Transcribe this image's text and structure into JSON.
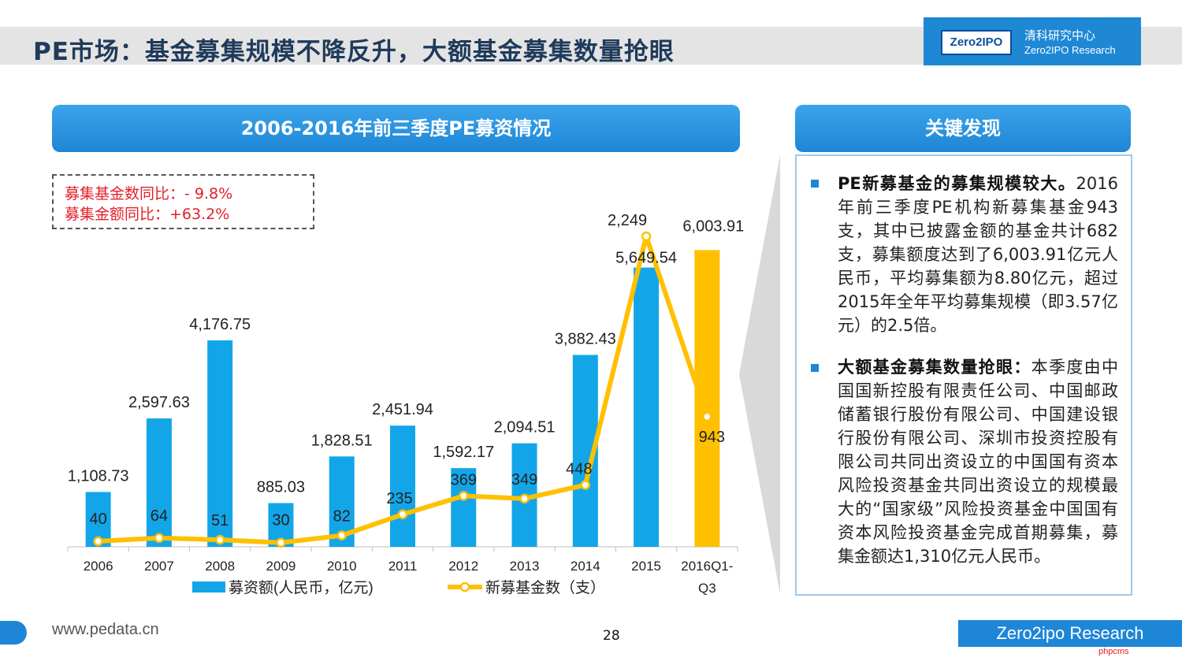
{
  "header": {
    "title": "PE市场：基金募集规模不降反升，大额基金募集数量抢眼",
    "logo_mark": "Zero2IPO",
    "logo_cn": "清科研究中心",
    "logo_en": "Zero2IPO Research"
  },
  "chart_panel": {
    "title": "2006-2016年前三季度PE募资情况",
    "yoy_fund_count": "募集基金数同比：- 9.8%",
    "yoy_fund_amount": "募集金额同比：+63.2%"
  },
  "chart_data": {
    "type": "bar",
    "categories": [
      "2006",
      "2007",
      "2008",
      "2009",
      "2010",
      "2011",
      "2012",
      "2013",
      "2014",
      "2015",
      "2016Q1-Q3"
    ],
    "category_labels": [
      [
        "2006"
      ],
      [
        "2007"
      ],
      [
        "2008"
      ],
      [
        "2009"
      ],
      [
        "2010"
      ],
      [
        "2011"
      ],
      [
        "2012"
      ],
      [
        "2013"
      ],
      [
        "2014"
      ],
      [
        "2015"
      ],
      [
        "2016Q1-",
        "Q3"
      ]
    ],
    "series": [
      {
        "name": "募资额(人民币，亿元)",
        "type": "bar",
        "values": [
          1108.73,
          2597.63,
          4176.75,
          885.03,
          1828.51,
          2451.94,
          1592.17,
          2094.51,
          3882.43,
          5649.54,
          6003.91
        ],
        "labels": [
          "1,108.73",
          "2,597.63",
          "4,176.75",
          "885.03",
          "1,828.51",
          "2,451.94",
          "1,592.17",
          "2,094.51",
          "3,882.43",
          "5,649.54",
          "6,003.91"
        ],
        "color": "#12a6e8",
        "highlight_color": "#ffc000"
      },
      {
        "name": "新募基金数（支）",
        "type": "line",
        "values": [
          40,
          64,
          51,
          30,
          82,
          235,
          369,
          349,
          448,
          2249,
          943
        ],
        "labels": [
          "40",
          "64",
          "51",
          "30",
          "82",
          "235",
          "369",
          "349",
          "448",
          "2,249",
          "943"
        ],
        "color": "#ffc000"
      }
    ],
    "ylim_bar": [
      0,
      7000
    ],
    "ylim_line": [
      0,
      2600
    ],
    "legend_position": "bottom"
  },
  "key_panel": {
    "title": "关键发现",
    "p1_bold": "PE新募基金的募集规模较大。",
    "p1_text": "2016年前三季度PE机构新募集基金943支，其中已披露金额的基金共计682支，募集额度达到了6,003.91亿元人民币，平均募集额为8.80亿元，超过2015年全年平均募集规模（即3.57亿元）的2.5倍。",
    "p2_bold": "大额基金募集数量抢眼：",
    "p2_text": "本季度由中国国新控股有限责任公司、中国邮政储蓄银行股份有限公司、中国建设银行股份有限公司、深圳市投资控股有限公司共同出资设立的中国国有资本风险投资基金共同出资设立的规模最大的“国家级”风险投资基金中国国有资本风险投资基金完成首期募集，募集金额达1,310亿元人民币。"
  },
  "footer": {
    "url": "www.pedata.cn",
    "page": "28",
    "brand": "Zero2ipo Research",
    "tag": "phpcms"
  }
}
